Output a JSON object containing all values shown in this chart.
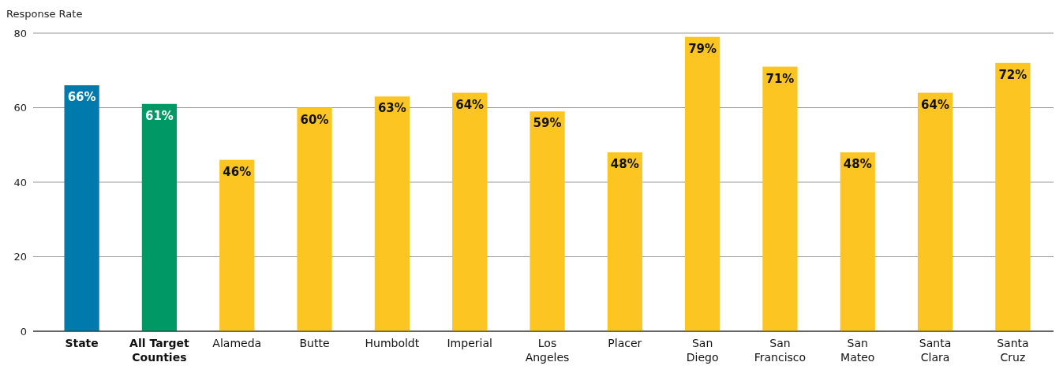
{
  "chart_data": {
    "type": "bar",
    "ylabel": "Response Rate",
    "categories": [
      "State",
      "All Target Counties",
      "Alameda",
      "Butte",
      "Humboldt",
      "Imperial",
      "Los Angeles",
      "Placer",
      "San Diego",
      "San Francisco",
      "San Mateo",
      "Santa Clara",
      "Santa Cruz"
    ],
    "values": [
      66,
      61,
      46,
      60,
      63,
      64,
      59,
      48,
      79,
      71,
      48,
      64,
      72
    ],
    "colors": [
      "#0079ad",
      "#009966",
      "#fdc521",
      "#fdc521",
      "#fdc521",
      "#fdc521",
      "#fdc521",
      "#fdc521",
      "#fdc521",
      "#fdc521",
      "#fdc521",
      "#fdc521",
      "#fdc521"
    ],
    "value_labels": [
      "66%",
      "61%",
      "46%",
      "60%",
      "63%",
      "64%",
      "59%",
      "48%",
      "79%",
      "71%",
      "48%",
      "64%",
      "72%"
    ],
    "ylim": [
      0,
      80
    ],
    "yticks": [
      0,
      20,
      40,
      60,
      80
    ],
    "grid": "y"
  }
}
